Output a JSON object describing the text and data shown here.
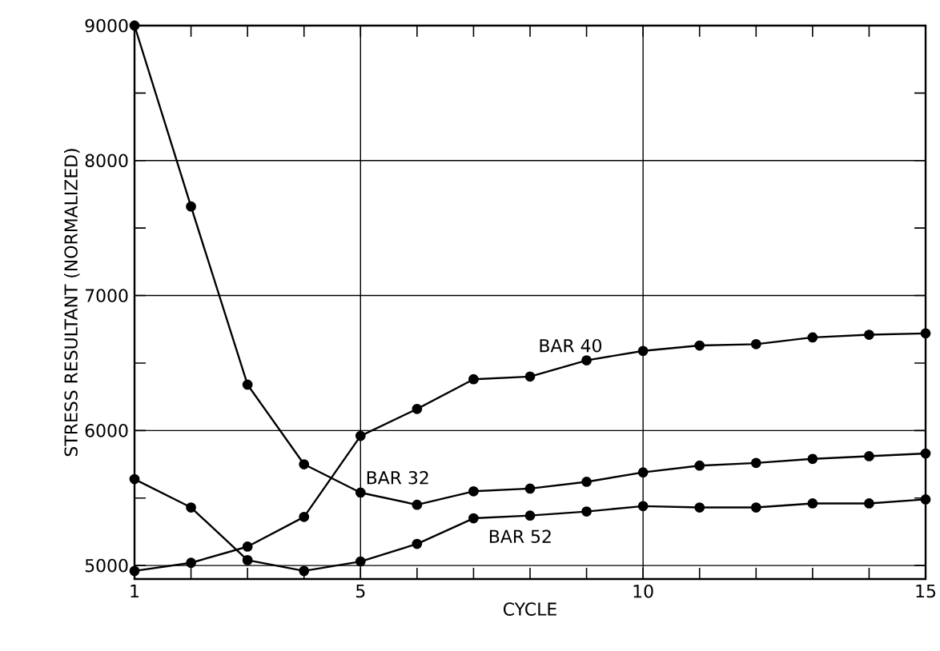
{
  "chart_data": {
    "type": "line",
    "xlabel": "CYCLE",
    "ylabel": "STRESS RESULTANT (NORMALIZED)",
    "x": [
      1,
      2,
      3,
      4,
      5,
      6,
      7,
      8,
      9,
      10,
      11,
      12,
      13,
      14,
      15
    ],
    "series": [
      {
        "name": "BAR 32",
        "color": "#000000",
        "values": [
          9000,
          7660,
          6340,
          5750,
          5540,
          5450,
          5550,
          5570,
          5620,
          5690,
          5740,
          5760,
          5790,
          5810,
          5830
        ]
      },
      {
        "name": "BAR 40",
        "color": "#000000",
        "values": [
          4960,
          5020,
          5140,
          5360,
          5960,
          6160,
          6380,
          6400,
          6520,
          6590,
          6630,
          6640,
          6690,
          6710,
          6720
        ]
      },
      {
        "name": "BAR 52",
        "color": "#000000",
        "values": [
          5640,
          5430,
          5040,
          4960,
          5030,
          5160,
          5350,
          5370,
          5400,
          5440,
          5430,
          5430,
          5460,
          5460,
          5490
        ]
      }
    ],
    "xlim": [
      1,
      15
    ],
    "ylim": [
      4900,
      9000
    ],
    "xticks": [
      1,
      5,
      10,
      15
    ],
    "yticks": [
      5000,
      6000,
      7000,
      8000,
      9000
    ],
    "grid": true,
    "marker": "circle",
    "line_style": "solid",
    "legend": false
  }
}
